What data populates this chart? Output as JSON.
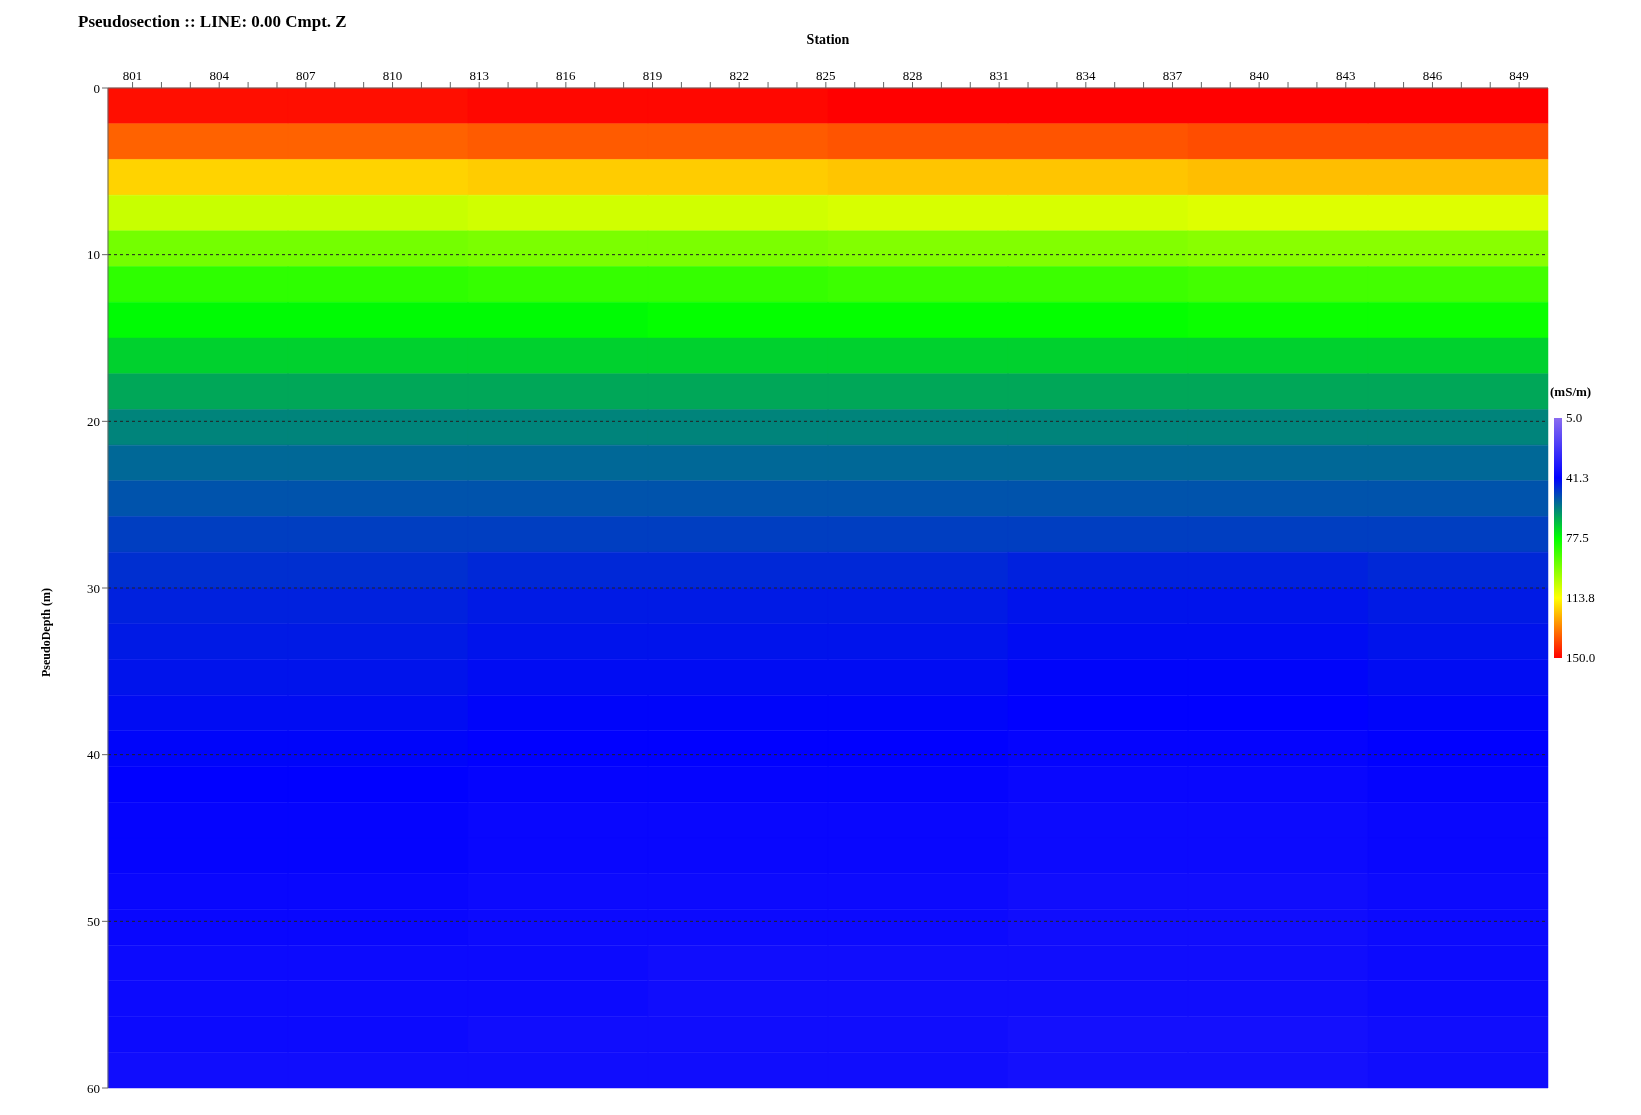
{
  "chart_data": {
    "type": "heatmap",
    "title": "Pseudosection ::  LINE: 0.00 Cmpt. Z",
    "xlabel": "Station",
    "ylabel": "PseudoDepth (m)",
    "clabel": "(mS/m)",
    "xlim": [
      800.15,
      850
    ],
    "xticks": [
      801,
      {
        "value": 802,
        "label": null
      },
      {
        "value": 803,
        "label": null
      },
      804,
      {
        "value": 805,
        "label": null
      },
      {
        "value": 806,
        "label": null
      },
      807,
      {
        "value": 808,
        "label": null
      },
      {
        "value": 809,
        "label": null
      },
      810,
      {
        "value": 811,
        "label": null
      },
      {
        "value": 812,
        "label": null
      },
      813,
      {
        "value": 814,
        "label": null
      },
      {
        "value": 815,
        "label": null
      },
      816,
      {
        "value": 817,
        "label": null
      },
      {
        "value": 818,
        "label": null
      },
      819,
      {
        "value": 820,
        "label": null
      },
      {
        "value": 821,
        "label": null
      },
      822,
      {
        "value": 823,
        "label": null
      },
      {
        "value": 824,
        "label": null
      },
      825,
      {
        "value": 826,
        "label": null
      },
      {
        "value": 827,
        "label": null
      },
      828,
      {
        "value": 829,
        "label": null
      },
      {
        "value": 830,
        "label": null
      },
      831,
      {
        "value": 832,
        "label": null
      },
      {
        "value": 833,
        "label": null
      },
      834,
      {
        "value": 835,
        "label": null
      },
      {
        "value": 836,
        "label": null
      },
      837,
      {
        "value": 838,
        "label": null
      },
      {
        "value": 839,
        "label": null
      },
      840,
      {
        "value": 841,
        "label": null
      },
      {
        "value": 842,
        "label": null
      },
      843,
      {
        "value": 844,
        "label": null
      },
      {
        "value": 845,
        "label": null
      },
      846,
      {
        "value": 847,
        "label": null
      },
      {
        "value": 848,
        "label": null
      },
      849
    ],
    "ylim": [
      60,
      0
    ],
    "yticks": [
      0,
      10,
      20,
      30,
      40,
      50,
      60
    ],
    "grid": "y",
    "clim": [
      5,
      150
    ],
    "cticks": [
      {
        "value": 5,
        "label": "5.0"
      },
      {
        "value": 41.3,
        "label": "41.3"
      },
      {
        "value": 77.5,
        "label": "77.5"
      },
      {
        "value": 113.8,
        "label": "113.8"
      },
      {
        "value": 150,
        "label": "150.0"
      }
    ],
    "cells": [
      [
        148,
        148,
        149,
        149,
        150,
        150,
        150,
        150
      ],
      [
        136,
        136,
        137,
        137,
        138,
        138,
        139,
        139
      ],
      [
        120,
        120,
        121,
        121,
        122,
        122,
        123,
        123
      ],
      [
        106,
        106,
        107,
        107,
        108,
        108,
        109,
        109
      ],
      [
        94,
        94,
        95,
        95,
        96,
        96,
        97,
        97
      ],
      [
        84,
        84,
        85,
        85,
        86,
        86,
        87,
        87
      ],
      [
        77,
        77,
        77,
        78,
        78,
        78,
        79,
        79
      ],
      [
        71,
        71,
        71,
        71,
        71,
        71,
        71,
        71
      ],
      [
        65,
        65,
        65,
        65,
        65,
        65,
        65,
        65
      ],
      [
        60,
        60,
        60,
        60,
        60,
        60,
        60,
        60
      ],
      [
        56,
        56,
        56,
        56,
        56,
        56,
        56,
        56
      ],
      [
        53,
        53,
        53,
        53,
        53,
        53,
        53,
        53
      ],
      [
        50,
        50,
        50,
        50,
        50,
        50,
        50,
        50
      ],
      [
        48,
        48,
        47,
        47,
        47,
        46,
        46,
        47
      ],
      [
        46,
        46,
        45,
        45,
        45,
        44,
        44,
        45
      ],
      [
        45,
        45,
        44,
        44,
        44,
        43,
        43,
        44
      ],
      [
        44,
        44,
        43,
        43,
        43,
        42,
        42,
        43
      ],
      [
        43,
        43,
        42,
        42,
        42,
        41,
        41,
        42
      ],
      [
        42,
        42,
        41,
        41,
        41,
        40,
        40,
        41
      ],
      [
        41,
        41,
        40,
        40,
        40,
        39,
        39,
        40
      ],
      [
        40,
        40,
        39,
        39,
        39,
        38,
        38,
        39
      ],
      [
        40,
        40,
        39,
        39,
        39,
        38,
        38,
        39
      ],
      [
        39,
        39,
        38,
        38,
        38,
        37,
        37,
        38
      ],
      [
        39,
        39,
        38,
        38,
        38,
        37,
        37,
        38
      ],
      [
        38,
        38,
        38,
        37,
        37,
        37,
        37,
        38
      ],
      [
        38,
        38,
        38,
        37,
        37,
        37,
        37,
        38
      ],
      [
        38,
        38,
        37,
        37,
        37,
        36,
        36,
        37
      ],
      [
        37,
        37,
        37,
        37,
        37,
        36,
        36,
        37
      ]
    ]
  }
}
